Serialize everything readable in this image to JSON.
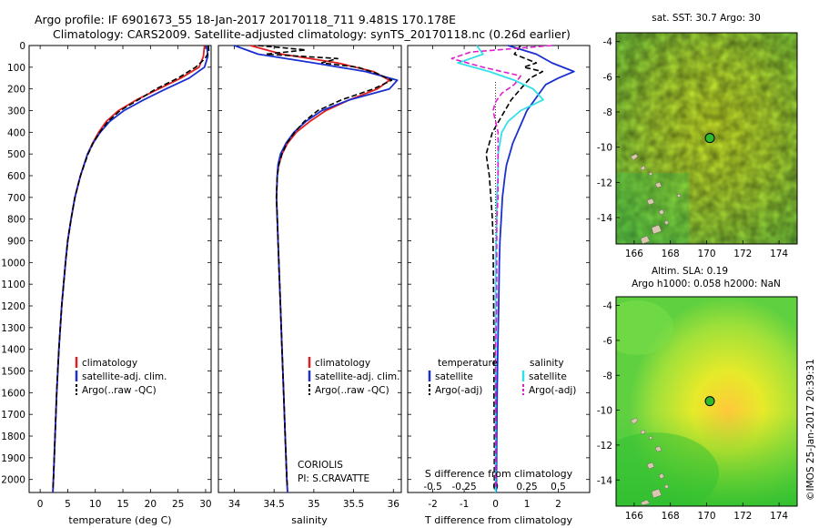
{
  "header": {
    "line1": "Argo profile: IF 6901673_55 18-Jan-2017 20170118_711 9.481S 170.178E",
    "line2": "Climatology: CARS2009. Satellite-adjusted climatology: synTS_20170118.nc (0.26d earlier)"
  },
  "side_text": "©IMOS 25-Jan-2017 20:39:31",
  "colors": {
    "climatology": "#e02020",
    "satellite": "#1a2fd0",
    "argo": "#000000",
    "salinity_satellite": "#33e0e8",
    "salinity_argo": "#e020d0",
    "map_marker": "#2dbb2d"
  },
  "chart_data": [
    {
      "type": "line",
      "panel": "temperature",
      "xlabel": "temperature (deg C)",
      "ylabel": "",
      "xlim": [
        -2,
        31
      ],
      "ylim": [
        2060,
        0
      ],
      "x_ticks": [
        0,
        5,
        10,
        15,
        20,
        25,
        30
      ],
      "y_ticks": [
        0,
        100,
        200,
        300,
        400,
        500,
        600,
        700,
        800,
        900,
        1000,
        1100,
        1200,
        1300,
        1400,
        1500,
        1600,
        1700,
        1800,
        1900,
        2000
      ],
      "legend": [
        "climatology",
        "satellite-adj. clim.",
        "Argo(..raw -QC)"
      ],
      "series": [
        {
          "name": "climatology",
          "style": "solid",
          "color_key": "climatology",
          "depth": [
            0,
            50,
            100,
            150,
            200,
            250,
            300,
            350,
            400,
            450,
            500,
            600,
            700,
            800,
            900,
            1000,
            1200,
            1400,
            1600,
            1800,
            2000,
            2060
          ],
          "values": [
            29.8,
            29.6,
            28.8,
            25.5,
            21.5,
            17.5,
            14.2,
            12.0,
            10.6,
            9.5,
            8.6,
            7.3,
            6.3,
            5.6,
            5.0,
            4.6,
            3.9,
            3.4,
            3.0,
            2.7,
            2.4,
            2.3
          ]
        },
        {
          "name": "satellite-adj. clim.",
          "style": "solid",
          "color_key": "satellite",
          "depth": [
            0,
            50,
            100,
            150,
            200,
            250,
            300,
            350,
            400,
            450,
            500,
            600,
            700,
            800,
            900,
            1000,
            1200,
            1400,
            1600,
            1800,
            2000,
            2060
          ],
          "values": [
            30.2,
            30.4,
            29.8,
            27.0,
            22.8,
            18.8,
            15.2,
            12.6,
            10.9,
            9.6,
            8.6,
            7.3,
            6.3,
            5.6,
            5.0,
            4.6,
            3.9,
            3.4,
            3.0,
            2.7,
            2.4,
            2.3
          ]
        },
        {
          "name": "Argo(..raw -QC)",
          "style": "dashed",
          "color_key": "argo",
          "depth": [
            0,
            30,
            60,
            100,
            150,
            200,
            250,
            300,
            350,
            400,
            450,
            500,
            600,
            700,
            800,
            900,
            1000,
            1200,
            1400,
            1600,
            1800,
            2000,
            2040
          ],
          "values": [
            30.5,
            30.6,
            29.9,
            28.2,
            25.0,
            21.0,
            17.8,
            14.5,
            12.3,
            10.8,
            9.6,
            8.7,
            7.3,
            6.3,
            5.6,
            5.0,
            4.6,
            3.9,
            3.4,
            3.0,
            2.7,
            2.4,
            2.3
          ]
        }
      ]
    },
    {
      "type": "line",
      "panel": "salinity",
      "xlabel": "salinity",
      "ylabel": "",
      "xlim": [
        33.8,
        36.1
      ],
      "ylim": [
        2060,
        0
      ],
      "x_ticks": [
        34,
        34.5,
        35,
        35.5,
        36
      ],
      "legend": [
        "climatology",
        "satellite-adj. clim.",
        "Argo(..raw -QC)"
      ],
      "annotations": [
        "CORIOLIS",
        "PI: S.CRAVATTE"
      ],
      "series": [
        {
          "name": "climatology",
          "style": "solid",
          "color_key": "climatology",
          "depth": [
            0,
            40,
            80,
            120,
            160,
            200,
            250,
            300,
            350,
            400,
            450,
            500,
            550,
            600,
            700,
            800,
            1000,
            1200,
            1400,
            1600,
            1800,
            2000,
            2060
          ],
          "values": [
            34.2,
            34.6,
            35.3,
            35.75,
            35.95,
            35.8,
            35.45,
            35.15,
            34.95,
            34.78,
            34.67,
            34.6,
            34.56,
            34.54,
            34.53,
            34.54,
            34.56,
            34.58,
            34.6,
            34.62,
            34.64,
            34.66,
            34.67
          ]
        },
        {
          "name": "satellite-adj. clim.",
          "style": "solid",
          "color_key": "satellite",
          "depth": [
            0,
            40,
            80,
            120,
            160,
            200,
            250,
            300,
            350,
            400,
            450,
            500,
            550,
            600,
            700,
            800,
            1000,
            1200,
            1400,
            1600,
            1800,
            2000,
            2060
          ],
          "values": [
            34.0,
            34.3,
            35.0,
            35.65,
            36.05,
            35.95,
            35.45,
            35.1,
            34.9,
            34.75,
            34.65,
            34.58,
            34.55,
            34.54,
            34.53,
            34.54,
            34.56,
            34.58,
            34.6,
            34.62,
            34.64,
            34.66,
            34.67
          ]
        },
        {
          "name": "Argo(..raw -QC)",
          "style": "dashed",
          "color_key": "argo",
          "depth": [
            0,
            20,
            40,
            60,
            80,
            100,
            130,
            160,
            200,
            250,
            300,
            350,
            400,
            450,
            500,
            550,
            600,
            700,
            800,
            1000,
            1200,
            1400,
            1600,
            1800,
            2000,
            2040
          ],
          "values": [
            34.3,
            34.9,
            34.4,
            35.3,
            35.1,
            35.55,
            35.8,
            35.98,
            35.75,
            35.35,
            35.05,
            34.88,
            34.76,
            34.66,
            34.6,
            34.56,
            34.54,
            34.53,
            34.54,
            34.56,
            34.58,
            34.6,
            34.62,
            34.64,
            34.66,
            34.67
          ]
        }
      ]
    },
    {
      "type": "line",
      "panel": "difference",
      "xlabel": "T difference from climatology",
      "x2label": "S difference from climatology",
      "xlim": [
        -2.8,
        3.0
      ],
      "ylim": [
        2060,
        0
      ],
      "x_ticks": [
        -2,
        -1,
        0,
        1,
        2
      ],
      "x2_ticks": [
        -0.5,
        -0.25,
        0,
        0.25,
        0.5
      ],
      "legend": [
        "temperature",
        "satellite",
        "Argo(-adj)",
        "salinity",
        "satellite",
        "Argo(-adj)"
      ],
      "series": [
        {
          "name": "satellite",
          "style": "solid",
          "color_key": "satellite",
          "quantity": "temperature",
          "depth": [
            0,
            40,
            80,
            120,
            150,
            180,
            220,
            260,
            300,
            350,
            400,
            450,
            500,
            550,
            600,
            700,
            800,
            900,
            1000,
            1200,
            1400,
            1600,
            1800,
            2000,
            2060
          ],
          "values": [
            0.4,
            1.3,
            1.8,
            2.5,
            2.0,
            1.6,
            1.4,
            1.2,
            1.0,
            0.85,
            0.7,
            0.55,
            0.45,
            0.35,
            0.3,
            0.22,
            0.18,
            0.14,
            0.12,
            0.1,
            0.07,
            0.05,
            0.04,
            0.03,
            0.02
          ]
        },
        {
          "name": "Argo(-adj)",
          "style": "dashed",
          "color_key": "argo",
          "quantity": "temperature",
          "depth": [
            0,
            40,
            80,
            100,
            120,
            150,
            200,
            250,
            300,
            350,
            400,
            450,
            500,
            600,
            700,
            800,
            900,
            1000,
            1200,
            1400,
            1600,
            1800,
            2000,
            2040
          ],
          "values": [
            0.8,
            0.6,
            1.3,
            0.9,
            1.5,
            1.1,
            0.8,
            0.5,
            0.3,
            0.1,
            -0.1,
            -0.2,
            -0.3,
            -0.2,
            -0.15,
            -0.1,
            -0.08,
            -0.07,
            -0.06,
            -0.05,
            -0.05,
            -0.04,
            -0.04,
            -0.04
          ]
        },
        {
          "name": "satellite",
          "style": "solid",
          "color_key": "salinity_satellite",
          "quantity": "salinity",
          "depth": [
            0,
            40,
            80,
            120,
            160,
            200,
            250,
            300,
            350,
            400,
            500,
            600,
            700,
            800,
            1000,
            1200,
            1400,
            1600,
            1800,
            2000,
            2060
          ],
          "values": [
            -0.15,
            -0.1,
            -0.3,
            -0.05,
            0.15,
            0.3,
            0.38,
            0.2,
            0.1,
            0.05,
            0.02,
            0.02,
            0.01,
            0.01,
            0.0,
            0.0,
            0.0,
            0.0,
            0.0,
            0.0,
            0.0
          ]
        },
        {
          "name": "Argo(-adj)",
          "style": "dashed",
          "color_key": "salinity_argo",
          "quantity": "salinity",
          "depth": [
            0,
            30,
            60,
            100,
            140,
            180,
            220,
            260,
            300,
            350,
            400,
            500,
            600,
            700,
            800,
            1000,
            1200,
            1400,
            1600,
            1800,
            2000,
            2040
          ],
          "values": [
            0.45,
            -0.2,
            -0.35,
            -0.1,
            0.2,
            0.15,
            0.05,
            0.0,
            -0.02,
            0.0,
            0.02,
            0.02,
            0.02,
            0.02,
            0.01,
            0.01,
            0.01,
            0.0,
            0.0,
            0.0,
            0.0,
            0.0
          ]
        }
      ]
    },
    {
      "type": "heatmap",
      "panel": "sst_map",
      "title": "sat. SST: 30.7 Argo: 30",
      "xlim": [
        165,
        175
      ],
      "ylim": [
        -15.5,
        -3.5
      ],
      "x_ticks": [
        166,
        168,
        170,
        172,
        174
      ],
      "y_ticks": [
        -4,
        -6,
        -8,
        -10,
        -12,
        -14
      ],
      "marker": {
        "lon": 170.178,
        "lat": -9.481
      }
    },
    {
      "type": "heatmap",
      "panel": "sla_map",
      "title_line1": "Altim. SLA: 0.19",
      "title_line2": "Argo h1000: 0.058 h2000: NaN",
      "xlim": [
        165,
        175
      ],
      "ylim": [
        -15.5,
        -3.5
      ],
      "x_ticks": [
        166,
        168,
        170,
        172,
        174
      ],
      "y_ticks": [
        -4,
        -6,
        -8,
        -10,
        -12,
        -14
      ],
      "marker": {
        "lon": 170.178,
        "lat": -9.481
      }
    }
  ]
}
